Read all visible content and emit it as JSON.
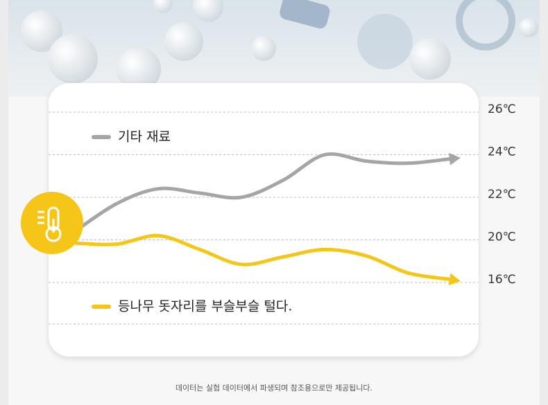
{
  "chart_data": {
    "type": "line",
    "x": [
      0,
      1,
      2,
      3,
      4,
      5,
      6,
      7,
      8,
      9
    ],
    "xlim": [
      0,
      9
    ],
    "ylim": [
      16,
      26
    ],
    "yticks": [
      {
        "value": 16,
        "label": "16℃"
      },
      {
        "value": 20,
        "label": "20℃"
      },
      {
        "value": 22,
        "label": "22℃"
      },
      {
        "value": 24,
        "label": "24℃"
      },
      {
        "value": 26,
        "label": "26℃"
      }
    ],
    "grid": true,
    "series": [
      {
        "name": "기타 재료",
        "color": "#a5a5a5",
        "values": [
          20.4,
          21.7,
          22.4,
          22.2,
          22.0,
          22.8,
          24.0,
          23.7,
          23.6,
          23.8
        ]
      },
      {
        "name": "등나무 돗자리를 부슬부슬 털다.",
        "color": "#f5c518",
        "values": [
          19.7,
          19.6,
          20.2,
          19.1,
          17.7,
          18.4,
          19.1,
          18.5,
          16.9,
          16.3
        ]
      }
    ],
    "footnote": "데이터는 실험 데이터에서 파생되며 참조용으로만 제공됩니다."
  }
}
